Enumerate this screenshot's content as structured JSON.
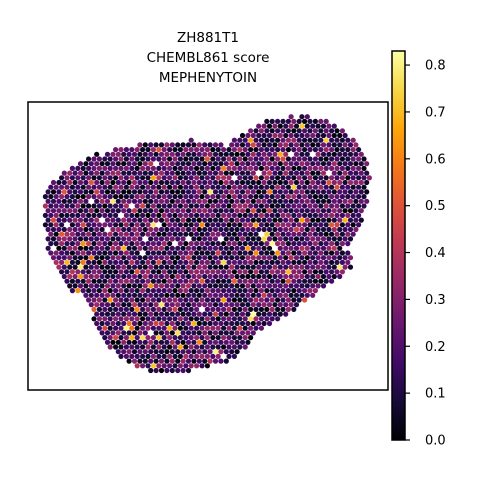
{
  "chart_data": {
    "type": "scatter",
    "subtype": "spatial-hexbin",
    "title_lines": [
      "ZH881T1",
      "CHEMBL861 score",
      "MEPHENYTOIN"
    ],
    "colorbar": {
      "colormap": "inferno",
      "range": [
        0.0,
        0.83
      ],
      "ticks": [
        0.0,
        0.1,
        0.2,
        0.3,
        0.4,
        0.5,
        0.6,
        0.7,
        0.8
      ],
      "tick_labels": [
        "0.0",
        "0.1",
        "0.2",
        "0.3",
        "0.4",
        "0.5",
        "0.6",
        "0.7",
        "0.8"
      ]
    },
    "value_distribution": {
      "typical_range": [
        0.05,
        0.35
      ],
      "median_approx": 0.18,
      "max_approx": 0.83
    },
    "axes_visible": false,
    "grid": false
  }
}
